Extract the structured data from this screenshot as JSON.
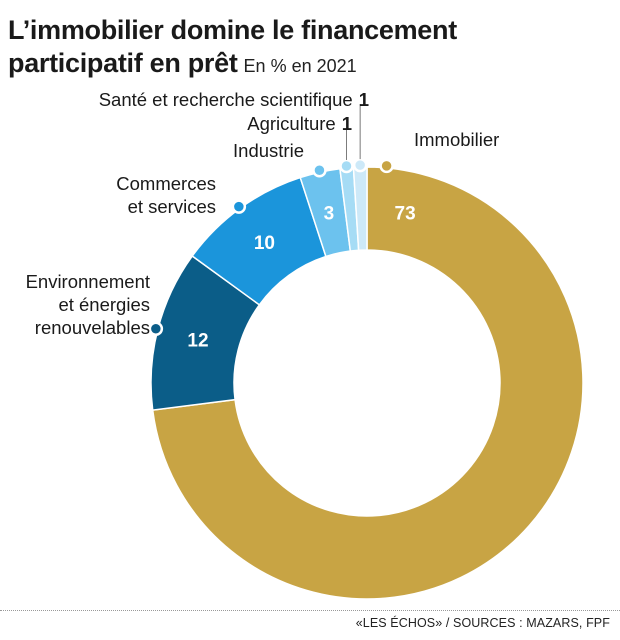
{
  "header": {
    "title_line1": "L’immobilier domine le financement",
    "title_line2": "participatif en prêt",
    "subtitle": "En % en 2021"
  },
  "footer": {
    "source": "«LES ÉCHOS» / SOURCES : MAZARS, FPF"
  },
  "chart_data": {
    "type": "pie",
    "title": "L’immobilier domine le financement participatif en prêt",
    "subtitle": "En % en 2021",
    "donut": true,
    "slices": [
      {
        "label": "Immobilier",
        "value": 73,
        "color": "#c8a444",
        "value_shown_inside": true,
        "label_lines": [
          "Immobilier"
        ],
        "value_color": "#ffffff"
      },
      {
        "label": "Environnement et énergies renouvelables",
        "value": 12,
        "color": "#0b5d88",
        "value_shown_inside": true,
        "label_lines": [
          "Environnement",
          "et énergies",
          "renouvelables"
        ],
        "value_color": "#ffffff"
      },
      {
        "label": "Commerces et services",
        "value": 10,
        "color": "#1b95db",
        "value_shown_inside": true,
        "label_lines": [
          "Commerces",
          "et services"
        ],
        "value_color": "#ffffff"
      },
      {
        "label": "Industrie",
        "value": 3,
        "color": "#6cc2ee",
        "value_shown_inside": true,
        "label_lines": [
          "Industrie"
        ],
        "value_color": "#ffffff"
      },
      {
        "label": "Agriculture",
        "value": 1,
        "color": "#a6dcf5",
        "value_shown_inside": false,
        "label_lines": [
          "Agriculture"
        ],
        "value_color": "#111111"
      },
      {
        "label": "Santé et recherche scientifique",
        "value": 1,
        "color": "#cde9f8",
        "value_shown_inside": false,
        "label_lines": [
          "Santé et recherche scientifique"
        ],
        "value_color": "#111111"
      }
    ],
    "sources": "«LES ÉCHOS» / SOURCES : MAZARS, FPF"
  }
}
